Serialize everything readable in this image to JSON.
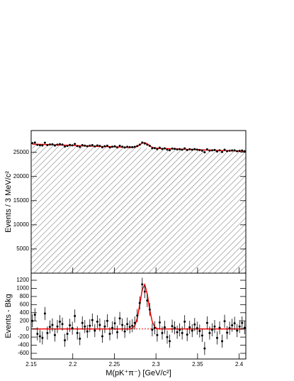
{
  "chart_data": [
    {
      "type": "fit-histogram",
      "ylabel": "Events / 3 MeV/c²",
      "x": [
        2.1515,
        2.1545,
        2.1575,
        2.1605,
        2.1635,
        2.1665,
        2.1695,
        2.1725,
        2.1755,
        2.1785,
        2.1815,
        2.1845,
        2.1875,
        2.1905,
        2.1935,
        2.1965,
        2.1995,
        2.2025,
        2.2055,
        2.2085,
        2.2115,
        2.2145,
        2.2175,
        2.2205,
        2.2235,
        2.2265,
        2.2295,
        2.2325,
        2.2355,
        2.2385,
        2.2415,
        2.2445,
        2.2475,
        2.2505,
        2.2535,
        2.2565,
        2.2595,
        2.2625,
        2.2655,
        2.2685,
        2.2715,
        2.2745,
        2.2775,
        2.2805,
        2.2835,
        2.2865,
        2.2895,
        2.2925,
        2.2955,
        2.2985,
        2.3015,
        2.3045,
        2.3075,
        2.3105,
        2.3135,
        2.3165,
        2.3195,
        2.3225,
        2.3255,
        2.3285,
        2.3315,
        2.3345,
        2.3375,
        2.3405,
        2.3435,
        2.3465,
        2.3495,
        2.3525,
        2.3555,
        2.3585,
        2.3615,
        2.3645,
        2.3675,
        2.3705,
        2.3735,
        2.3765,
        2.3795,
        2.3825,
        2.3855,
        2.3885,
        2.3915,
        2.3945,
        2.3975,
        2.4005,
        2.4035,
        2.4065
      ],
      "values": [
        26900,
        27032,
        26545,
        26467,
        26410,
        26992,
        26494,
        26627,
        26659,
        26392,
        26584,
        26686,
        26609,
        26191,
        26334,
        26526,
        26438,
        26721,
        26283,
        26126,
        26498,
        26390,
        26253,
        26375,
        26498,
        26220,
        26422,
        26325,
        26027,
        26250,
        26372,
        26034,
        26167,
        26259,
        26022,
        26344,
        26166,
        25989,
        26151,
        26064,
        26076,
        26128,
        26291,
        26583,
        27026,
        26828,
        26590,
        26353,
        25835,
        25868,
        25670,
        25962,
        25685,
        25807,
        25550,
        25432,
        25784,
        25727,
        25599,
        25642,
        25544,
        25806,
        25469,
        25631,
        25534,
        25666,
        25558,
        25471,
        25343,
        25006,
        25618,
        25350,
        25413,
        25475,
        25178,
        25410,
        25062,
        25535,
        25237,
        25330,
        25382,
        25414,
        25217,
        25299,
        25372,
        25234
      ],
      "error": 161,
      "background": [
        26700,
        26682,
        26665,
        26647,
        26630,
        26612,
        26594,
        26577,
        26559,
        26542,
        26524,
        26506,
        26489,
        26471,
        26454,
        26436,
        26418,
        26401,
        26383,
        26366,
        26348,
        26330,
        26313,
        26295,
        26278,
        26260,
        26242,
        26225,
        26207,
        26190,
        26172,
        26154,
        26137,
        26119,
        26102,
        26084,
        26066,
        26049,
        26031,
        26014,
        25996,
        25978,
        25961,
        25943,
        25926,
        25908,
        25890,
        25873,
        25855,
        25838,
        25820,
        25802,
        25785,
        25767,
        25750,
        25732,
        25714,
        25697,
        25679,
        25662,
        25644,
        25626,
        25609,
        25591,
        25574,
        25556,
        25538,
        25521,
        25503,
        25486,
        25468,
        25450,
        25433,
        25415,
        25398,
        25380,
        25362,
        25345,
        25327,
        25310,
        25292,
        25274,
        25257,
        25239,
        25222,
        25204
      ],
      "signal": [
        0,
        0,
        0,
        0,
        0,
        0,
        0,
        0,
        0,
        0,
        0,
        0,
        0,
        0,
        0,
        0,
        0,
        0,
        0,
        0,
        0,
        0,
        0,
        0,
        0,
        0,
        0,
        0,
        0,
        0,
        0,
        0,
        0,
        0,
        0,
        0,
        0,
        0,
        0,
        0,
        16,
        78,
        259,
        600,
        970,
        1095,
        860,
        473,
        181,
        48,
        9,
        0,
        0,
        0,
        0,
        0,
        0,
        0,
        0,
        0,
        0,
        0,
        0,
        0,
        0,
        0,
        0,
        0,
        0,
        0,
        0,
        0,
        0,
        0,
        0,
        0,
        0,
        0,
        0,
        0,
        0,
        0,
        0,
        0,
        0,
        0
      ],
      "color": "#000000",
      "fit_color": "#ff0000",
      "xlim": [
        2.15,
        2.408
      ],
      "xticks": [
        2.15,
        2.2,
        2.25,
        2.3,
        2.35,
        2.4
      ],
      "ylim": [
        0,
        29500
      ],
      "yticks": [
        5000,
        10000,
        15000,
        20000,
        25000
      ]
    },
    {
      "type": "residual",
      "xlabel": "M(pK⁺π⁻) [GeV/c²]",
      "ylabel": "Events - Bkg",
      "x": [
        2.1515,
        2.1545,
        2.1575,
        2.1605,
        2.1635,
        2.1665,
        2.1695,
        2.1725,
        2.1755,
        2.1785,
        2.1815,
        2.1845,
        2.1875,
        2.1905,
        2.1935,
        2.1965,
        2.1995,
        2.2025,
        2.2055,
        2.2085,
        2.2115,
        2.2145,
        2.2175,
        2.2205,
        2.2235,
        2.2265,
        2.2295,
        2.2325,
        2.2355,
        2.2385,
        2.2415,
        2.2445,
        2.2475,
        2.2505,
        2.2535,
        2.2565,
        2.2595,
        2.2625,
        2.2655,
        2.2685,
        2.2715,
        2.2745,
        2.2775,
        2.2805,
        2.2835,
        2.2865,
        2.2895,
        2.2925,
        2.2955,
        2.2985,
        2.3015,
        2.3045,
        2.3075,
        2.3105,
        2.3135,
        2.3165,
        2.3195,
        2.3225,
        2.3255,
        2.3285,
        2.3315,
        2.3345,
        2.3375,
        2.3405,
        2.3435,
        2.3465,
        2.3495,
        2.3525,
        2.3555,
        2.3585,
        2.3615,
        2.3645,
        2.3675,
        2.3705,
        2.3735,
        2.3765,
        2.3795,
        2.3825,
        2.3855,
        2.3885,
        2.3915,
        2.3945,
        2.3975,
        2.4005,
        2.4035,
        2.4065
      ],
      "values": [
        200,
        350,
        -120,
        -180,
        -220,
        380,
        -100,
        50,
        100,
        -150,
        60,
        180,
        120,
        -280,
        -120,
        90,
        20,
        320,
        -100,
        -240,
        150,
        60,
        -60,
        80,
        220,
        -40,
        180,
        100,
        -180,
        60,
        200,
        -120,
        30,
        140,
        -80,
        260,
        100,
        -60,
        120,
        50,
        80,
        150,
        330,
        640,
        1100,
        920,
        700,
        480,
        -20,
        30,
        -150,
        160,
        -100,
        40,
        -200,
        -300,
        70,
        30,
        -80,
        -20,
        -100,
        180,
        -140,
        40,
        -40,
        110,
        20,
        -50,
        -160,
        -480,
        150,
        -100,
        -20,
        60,
        -220,
        30,
        -300,
        190,
        -90,
        20,
        90,
        140,
        -40,
        60,
        150,
        30
      ],
      "error": 161,
      "signal": [
        0,
        0,
        0,
        0,
        0,
        0,
        0,
        0,
        0,
        0,
        0,
        0,
        0,
        0,
        0,
        0,
        0,
        0,
        0,
        0,
        0,
        0,
        0,
        0,
        0,
        0,
        0,
        0,
        0,
        0,
        0,
        0,
        0,
        0,
        0,
        0,
        0,
        0,
        0,
        0,
        16,
        78,
        259,
        600,
        970,
        1095,
        860,
        473,
        181,
        48,
        9,
        0,
        0,
        0,
        0,
        0,
        0,
        0,
        0,
        0,
        0,
        0,
        0,
        0,
        0,
        0,
        0,
        0,
        0,
        0,
        0,
        0,
        0,
        0,
        0,
        0,
        0,
        0,
        0,
        0,
        0,
        0,
        0,
        0,
        0,
        0
      ],
      "color": "#000000",
      "fit_color": "#ff0000",
      "xlim": [
        2.15,
        2.408
      ],
      "xticks": [
        2.15,
        2.2,
        2.25,
        2.3,
        2.35,
        2.4
      ],
      "ylim": [
        -740,
        1375
      ],
      "yticks": [
        -600,
        -400,
        -200,
        0,
        200,
        400,
        600,
        800,
        1000,
        1200
      ]
    }
  ]
}
